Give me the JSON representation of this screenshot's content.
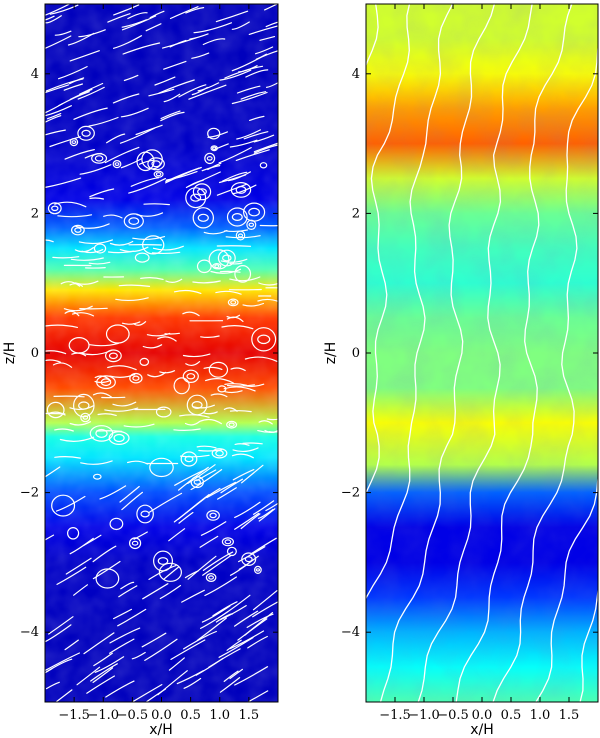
{
  "chart_data": [
    {
      "type": "heatmap",
      "title": "",
      "xlabel": "x/H",
      "ylabel": "z/H",
      "xlim": [
        -2.0,
        2.0
      ],
      "ylim": [
        -5.0,
        5.0
      ],
      "xticks": [
        -1.5,
        -1.0,
        -0.5,
        0.0,
        0.5,
        1.0,
        1.5
      ],
      "xtick_labels": [
        "−1.5",
        "−1.0",
        "−0.5",
        "0.0",
        "0.5",
        "1.0",
        "1.5"
      ],
      "yticks": [
        -4,
        -2,
        0,
        2,
        4
      ],
      "ytick_labels": [
        "−4",
        "−2",
        "0",
        "2",
        "4"
      ],
      "colormap": "jet",
      "overlay": "streamlines",
      "overlay_color": "#ffffff",
      "profile_z": [
        -5,
        -4,
        -3,
        -2.5,
        -2,
        -1.5,
        -1.2,
        -1,
        -0.5,
        0,
        0.5,
        0.9,
        1.2,
        1.5,
        1.8,
        2.2,
        3,
        4,
        5
      ],
      "profile_level": [
        0.06,
        0.06,
        0.07,
        0.1,
        0.2,
        0.35,
        0.4,
        0.55,
        0.8,
        0.9,
        0.82,
        0.65,
        0.45,
        0.35,
        0.22,
        0.1,
        0.07,
        0.06,
        0.06
      ]
    },
    {
      "type": "heatmap",
      "title": "",
      "xlabel": "x/H",
      "ylabel": "z/H",
      "xlim": [
        -2.0,
        2.0
      ],
      "ylim": [
        -5.0,
        5.0
      ],
      "xticks": [
        -1.5,
        -1.0,
        -0.5,
        0.0,
        0.5,
        1.0,
        1.5
      ],
      "xtick_labels": [
        "−1.5",
        "−1.0",
        "−0.5",
        "0.0",
        "0.5",
        "1.0",
        "1.5"
      ],
      "yticks": [
        -4,
        -2,
        0,
        2,
        4
      ],
      "ytick_labels": [
        "−4",
        "−2",
        "0",
        "2",
        "4"
      ],
      "colormap": "jet",
      "overlay": "field lines",
      "overlay_color": "#ffffff",
      "profile_z": [
        -5,
        -4.5,
        -4,
        -3.5,
        -3,
        -2.5,
        -2,
        -1.6,
        -1,
        -0.5,
        0,
        0.5,
        1,
        1.5,
        2,
        2.5,
        3,
        3.5,
        4,
        4.5,
        5
      ],
      "profile_level": [
        0.45,
        0.38,
        0.3,
        0.18,
        0.1,
        0.1,
        0.22,
        0.55,
        0.62,
        0.5,
        0.5,
        0.48,
        0.42,
        0.44,
        0.48,
        0.58,
        0.78,
        0.72,
        0.62,
        0.58,
        0.58
      ]
    }
  ]
}
